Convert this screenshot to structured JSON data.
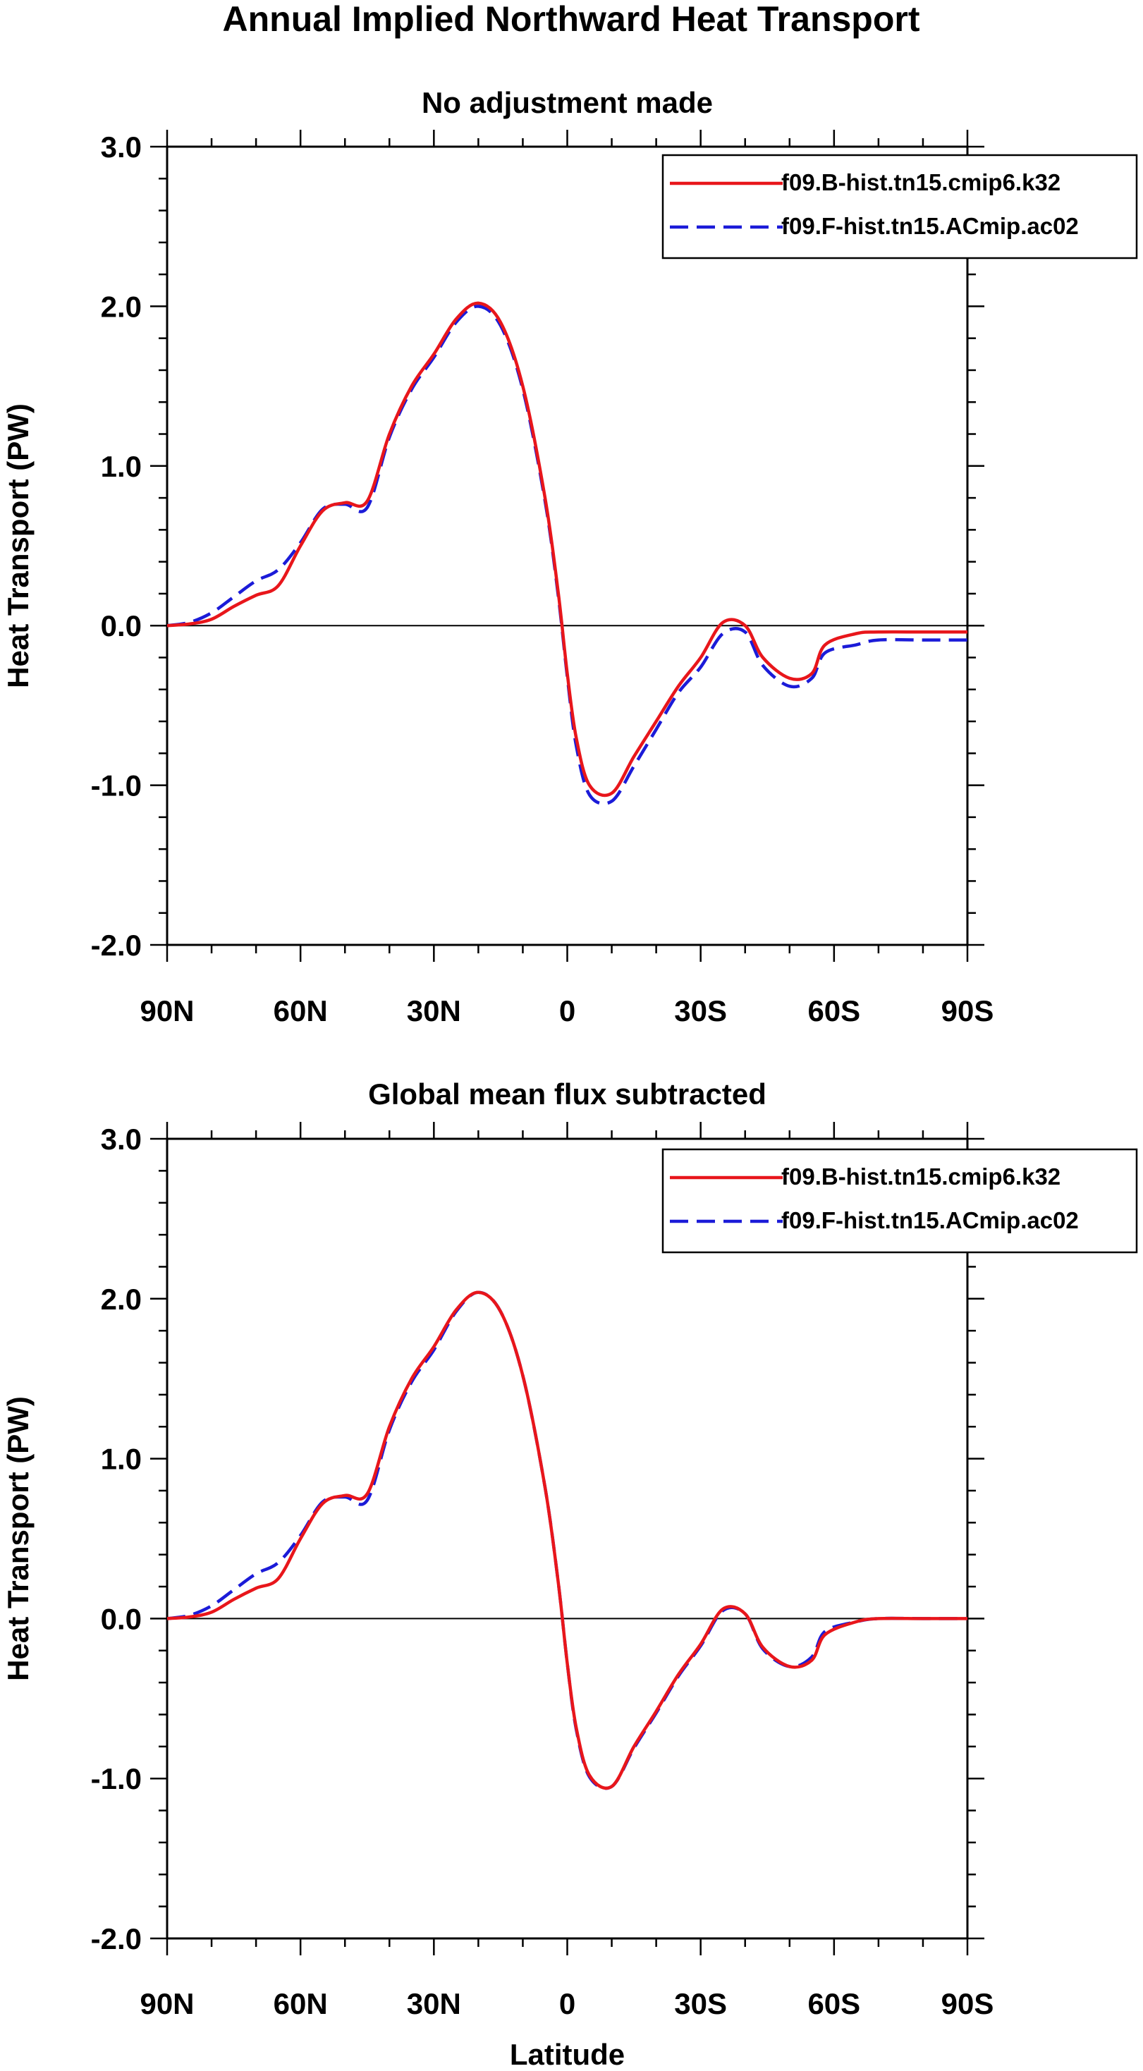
{
  "figure_title": "Annual Implied Northward Heat Transport",
  "chart_data": [
    {
      "type": "line",
      "title": "No adjustment made",
      "xlabel": "",
      "ylabel": "Heat Transport (PW)",
      "x_ticks": [
        {
          "value": 90,
          "label": "90N"
        },
        {
          "value": 60,
          "label": "60N"
        },
        {
          "value": 30,
          "label": "30N"
        },
        {
          "value": 0,
          "label": "0"
        },
        {
          "value": -30,
          "label": "30S"
        },
        {
          "value": -60,
          "label": "60S"
        },
        {
          "value": -90,
          "label": "90S"
        }
      ],
      "xlim": [
        90,
        -90
      ],
      "ylim": [
        -2.0,
        3.0
      ],
      "y_ticks": [
        {
          "value": 3.0,
          "label": "3.0"
        },
        {
          "value": 2.0,
          "label": "2.0"
        },
        {
          "value": 1.0,
          "label": "1.0"
        },
        {
          "value": 0.0,
          "label": "0.0"
        },
        {
          "value": -1.0,
          "label": "-1.0"
        },
        {
          "value": -2.0,
          "label": "-2.0"
        }
      ],
      "zero_line": true,
      "grid": false,
      "legend_position": "top-right",
      "series": [
        {
          "name": "f09.B-hist.tn15.cmip6.k32",
          "color": "#e8161b",
          "dash": "solid",
          "x": [
            90,
            85,
            80,
            75,
            70,
            65,
            60,
            55,
            50,
            45,
            40,
            35,
            30,
            25,
            20,
            15,
            10,
            5,
            2,
            0,
            -2,
            -5,
            -10,
            -15,
            -20,
            -25,
            -30,
            -35,
            -40,
            -44,
            -50,
            -55,
            -58,
            -65,
            -70,
            -80,
            -90
          ],
          "y": [
            0.0,
            0.01,
            0.04,
            0.12,
            0.19,
            0.25,
            0.5,
            0.72,
            0.77,
            0.78,
            1.2,
            1.5,
            1.7,
            1.92,
            2.02,
            1.9,
            1.5,
            0.8,
            0.2,
            -0.3,
            -0.7,
            -1.0,
            -1.05,
            -0.82,
            -0.6,
            -0.38,
            -0.2,
            0.02,
            0.0,
            -0.2,
            -0.33,
            -0.3,
            -0.12,
            -0.05,
            -0.04,
            -0.04,
            -0.04
          ]
        },
        {
          "name": "f09.F-hist.tn15.ACmip.ac02",
          "color": "#1b1bd8",
          "dash": "dashed",
          "x": [
            90,
            85,
            80,
            75,
            70,
            65,
            60,
            55,
            50,
            45,
            40,
            35,
            30,
            25,
            20,
            15,
            10,
            5,
            2,
            0,
            -2,
            -5,
            -10,
            -15,
            -20,
            -25,
            -30,
            -35,
            -40,
            -44,
            -50,
            -55,
            -58,
            -65,
            -70,
            -80,
            -90
          ],
          "y": [
            0.0,
            0.02,
            0.08,
            0.18,
            0.28,
            0.35,
            0.52,
            0.73,
            0.76,
            0.74,
            1.18,
            1.48,
            1.68,
            1.9,
            2.0,
            1.88,
            1.48,
            0.78,
            0.18,
            -0.32,
            -0.75,
            -1.06,
            -1.1,
            -0.88,
            -0.65,
            -0.42,
            -0.26,
            -0.05,
            -0.04,
            -0.25,
            -0.38,
            -0.33,
            -0.17,
            -0.12,
            -0.09,
            -0.09,
            -0.09
          ]
        }
      ]
    },
    {
      "type": "line",
      "title": "Global mean flux subtracted",
      "xlabel": "Latitude",
      "ylabel": "Heat Transport (PW)",
      "x_ticks": [
        {
          "value": 90,
          "label": "90N"
        },
        {
          "value": 60,
          "label": "60N"
        },
        {
          "value": 30,
          "label": "30N"
        },
        {
          "value": 0,
          "label": "0"
        },
        {
          "value": -30,
          "label": "30S"
        },
        {
          "value": -60,
          "label": "60S"
        },
        {
          "value": -90,
          "label": "90S"
        }
      ],
      "xlim": [
        90,
        -90
      ],
      "ylim": [
        -2.0,
        3.0
      ],
      "y_ticks": [
        {
          "value": 3.0,
          "label": "3.0"
        },
        {
          "value": 2.0,
          "label": "2.0"
        },
        {
          "value": 1.0,
          "label": "1.0"
        },
        {
          "value": 0.0,
          "label": "0.0"
        },
        {
          "value": -1.0,
          "label": "-1.0"
        },
        {
          "value": -2.0,
          "label": "-2.0"
        }
      ],
      "zero_line": true,
      "grid": false,
      "legend_position": "top-right",
      "series": [
        {
          "name": "f09.B-hist.tn15.cmip6.k32",
          "color": "#e8161b",
          "dash": "solid",
          "x": [
            90,
            85,
            80,
            75,
            70,
            65,
            60,
            55,
            50,
            45,
            40,
            35,
            30,
            25,
            20,
            15,
            10,
            5,
            2,
            0,
            -2,
            -5,
            -10,
            -15,
            -20,
            -25,
            -30,
            -35,
            -40,
            -44,
            -50,
            -55,
            -58,
            -65,
            -70,
            -80,
            -90
          ],
          "y": [
            0.0,
            0.01,
            0.04,
            0.12,
            0.19,
            0.25,
            0.5,
            0.72,
            0.77,
            0.78,
            1.2,
            1.5,
            1.7,
            1.93,
            2.04,
            1.92,
            1.52,
            0.82,
            0.22,
            -0.28,
            -0.68,
            -0.98,
            -1.05,
            -0.8,
            -0.58,
            -0.35,
            -0.16,
            0.06,
            0.03,
            -0.18,
            -0.3,
            -0.26,
            -0.1,
            -0.02,
            0.0,
            0.0,
            0.0
          ]
        },
        {
          "name": "f09.F-hist.tn15.ACmip.ac02",
          "color": "#1b1bd8",
          "dash": "dashed",
          "x": [
            90,
            85,
            80,
            75,
            70,
            65,
            60,
            55,
            50,
            45,
            40,
            35,
            30,
            25,
            20,
            15,
            10,
            5,
            2,
            0,
            -2,
            -5,
            -10,
            -15,
            -20,
            -25,
            -30,
            -35,
            -40,
            -44,
            -50,
            -55,
            -58,
            -65,
            -70,
            -80,
            -90
          ],
          "y": [
            0.0,
            0.02,
            0.08,
            0.18,
            0.28,
            0.35,
            0.52,
            0.73,
            0.76,
            0.74,
            1.18,
            1.48,
            1.68,
            1.92,
            2.04,
            1.92,
            1.52,
            0.82,
            0.22,
            -0.28,
            -0.69,
            -0.99,
            -1.05,
            -0.81,
            -0.59,
            -0.36,
            -0.17,
            0.05,
            0.03,
            -0.19,
            -0.3,
            -0.24,
            -0.08,
            -0.02,
            0.0,
            0.0,
            0.0
          ]
        }
      ]
    }
  ]
}
